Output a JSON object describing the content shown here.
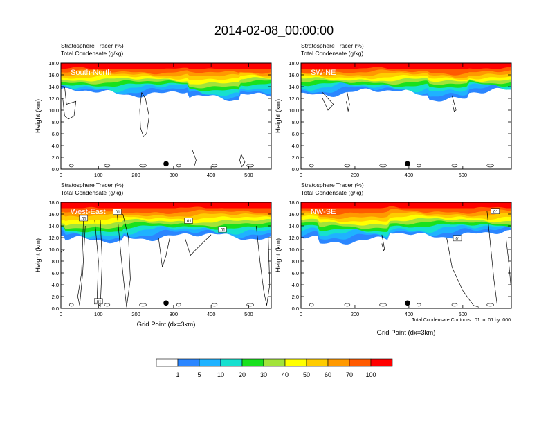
{
  "figure": {
    "title": "2014-02-08_00:00:00",
    "contour_note": "Total Condensate Contours: .01 to .01 by .000"
  },
  "chart_data": [
    {
      "type": "heatmap",
      "panel_label": "South-North",
      "subtitle_lines": [
        "Stratosphere Tracer   (%)",
        "Total Condensate   (g/kg)"
      ],
      "ylabel": "Height (km)",
      "xlabel": "",
      "xlim": [
        0,
        560
      ],
      "ylim": [
        0,
        18
      ],
      "xticks": [
        "0",
        "100",
        "200",
        "300",
        "400",
        "500"
      ],
      "yticks": [
        "0.0",
        "2.0",
        "4.0",
        "6.0",
        "8.0",
        "10.0",
        "12.0",
        "14.0",
        "16.0",
        "18.0"
      ],
      "marker_x": 280,
      "contour_labels": []
    },
    {
      "type": "heatmap",
      "panel_label": "SW-NE",
      "subtitle_lines": [
        "Stratosphere Tracer   (%)",
        "Total Condensate   (g/kg)"
      ],
      "ylabel": "Height (km)",
      "xlabel": "",
      "xlim": [
        0,
        780
      ],
      "ylim": [
        0,
        18
      ],
      "xticks": [
        "0",
        "200",
        "400",
        "600"
      ],
      "yticks": [
        "0.0",
        "2.0",
        "4.0",
        "6.0",
        "8.0",
        "10.0",
        "12.0",
        "14.0",
        "16.0",
        "18.0"
      ],
      "marker_x": 395,
      "contour_labels": []
    },
    {
      "type": "heatmap",
      "panel_label": "West-East",
      "subtitle_lines": [
        "Stratosphere Tracer   (%)",
        "Total Condensate   (g/kg)"
      ],
      "ylabel": "Height (km)",
      "xlabel": "Grid Point (dx=3km)",
      "xlim": [
        0,
        560
      ],
      "ylim": [
        0,
        18
      ],
      "xticks": [
        "0",
        "100",
        "200",
        "300",
        "400",
        "500"
      ],
      "yticks": [
        "0.0",
        "2.0",
        "4.0",
        "6.0",
        "8.0",
        "10.0",
        "12.0",
        "14.0",
        "16.0",
        "18.0"
      ],
      "marker_x": 280,
      "contour_labels": [
        {
          "text": ".01",
          "x": 60,
          "y": 15.3
        },
        {
          "text": ".01",
          "x": 150,
          "y": 16.4
        },
        {
          "text": ".01",
          "x": 340,
          "y": 14.9
        },
        {
          "text": ".01",
          "x": 430,
          "y": 13.4
        },
        {
          "text": ".01",
          "x": 100,
          "y": 1.2
        }
      ]
    },
    {
      "type": "heatmap",
      "panel_label": "NW-SE",
      "subtitle_lines": [
        "Stratosphere Tracer   (%)",
        "Total Condensate   (g/kg)"
      ],
      "ylabel": "Height (km)",
      "xlabel": "Grid Point (dx=3km)",
      "xlim": [
        0,
        780
      ],
      "ylim": [
        0,
        18
      ],
      "xticks": [
        "0",
        "200",
        "400",
        "600"
      ],
      "yticks": [
        "0.0",
        "2.0",
        "4.0",
        "6.0",
        "8.0",
        "10.0",
        "12.0",
        "14.0",
        "16.0",
        "18.0"
      ],
      "marker_x": 395,
      "contour_labels": [
        {
          "text": ".01",
          "x": 720,
          "y": 16.5
        },
        {
          "text": ".01",
          "x": 580,
          "y": 11.9
        }
      ]
    }
  ],
  "colorbar": {
    "levels": [
      "1",
      "5",
      "10",
      "20",
      "30",
      "40",
      "50",
      "60",
      "70",
      "100"
    ],
    "colors": [
      "#ffffff",
      "#2b86ff",
      "#1fb2ff",
      "#16e0cf",
      "#19e11e",
      "#a2e33a",
      "#ffff00",
      "#ffcc00",
      "#ff9900",
      "#ff5a00",
      "#ff0000"
    ]
  }
}
